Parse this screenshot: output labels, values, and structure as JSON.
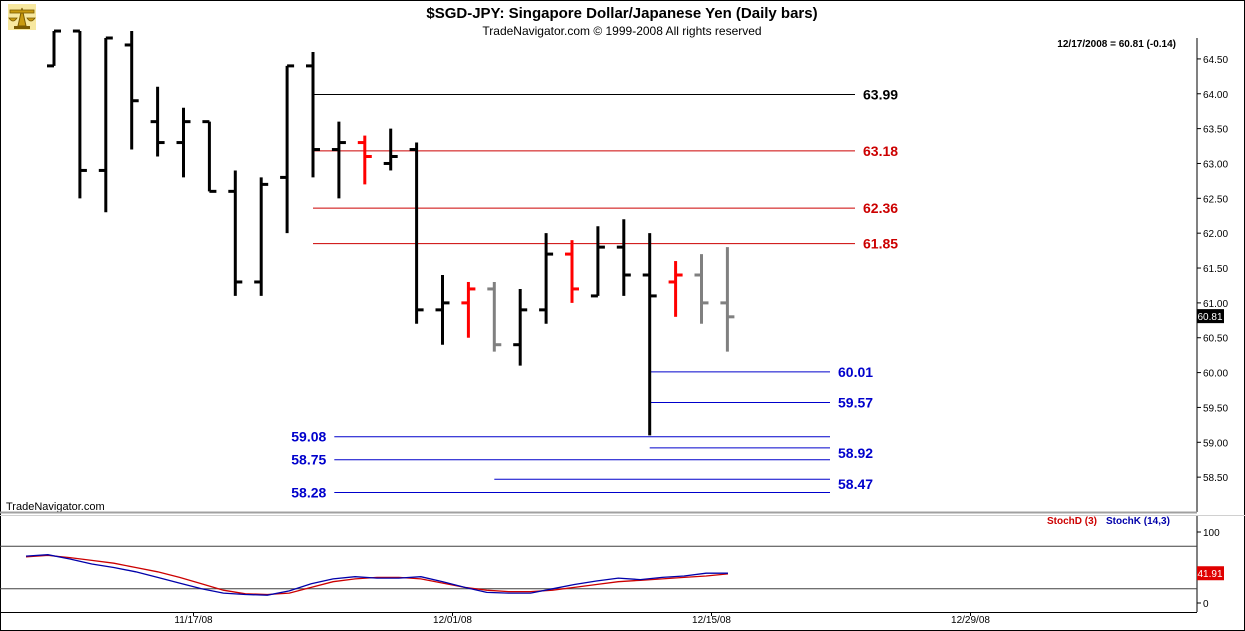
{
  "header": {
    "title": "$SGD-JPY:  Singapore Dollar/Japanese Yen  (Daily bars)",
    "copyright": "TradeNavigator.com © 1999-2008 All rights reserved",
    "quote": "12/17/2008 = 60.81 (-0.14)",
    "logo_icon": "trading-scale-icon"
  },
  "watermark": "TradeNavigator.com",
  "colors": {
    "up": "#000000",
    "down": "#ff0000",
    "pending": "#808080",
    "resistance": "#000000",
    "fib": "#cc0000",
    "support": "#0000cc",
    "stochD": "#cc0000",
    "stochK": "#0000aa"
  },
  "chart_data": [
    {
      "type": "bar",
      "subtype": "ohlc",
      "title": "$SGD-JPY:  Singapore Dollar/Japanese Yen  (Daily bars)",
      "ylim": [
        58.0,
        64.8
      ],
      "y_ticks": [
        "64.50",
        "64.00",
        "63.50",
        "63.00",
        "62.50",
        "62.00",
        "61.50",
        "61.00",
        "60.50",
        "60.00",
        "59.50",
        "59.00",
        "58.50"
      ],
      "x_ticks": [
        {
          "label": "11/17/08",
          "bar": 5
        },
        {
          "label": "12/01/08",
          "bar": 15
        },
        {
          "label": "12/15/08",
          "bar": 25
        },
        {
          "label": "12/29/08",
          "bar": 35
        }
      ],
      "bars": [
        {
          "o": 64.4,
          "h": 64.9,
          "l": 64.4,
          "c": 64.9,
          "color": "up"
        },
        {
          "o": 64.9,
          "h": 64.9,
          "l": 62.5,
          "c": 62.9,
          "color": "up"
        },
        {
          "o": 62.9,
          "h": 64.8,
          "l": 62.3,
          "c": 64.8,
          "color": "up"
        },
        {
          "o": 64.7,
          "h": 64.9,
          "l": 63.2,
          "c": 63.9,
          "color": "up"
        },
        {
          "o": 63.6,
          "h": 64.1,
          "l": 63.1,
          "c": 63.3,
          "color": "up"
        },
        {
          "o": 63.3,
          "h": 63.8,
          "l": 62.8,
          "c": 63.6,
          "color": "up"
        },
        {
          "o": 63.6,
          "h": 63.6,
          "l": 62.6,
          "c": 62.6,
          "color": "up"
        },
        {
          "o": 62.6,
          "h": 62.9,
          "l": 61.1,
          "c": 61.3,
          "color": "up"
        },
        {
          "o": 61.3,
          "h": 62.8,
          "l": 61.1,
          "c": 62.7,
          "color": "up"
        },
        {
          "o": 62.8,
          "h": 64.4,
          "l": 62.0,
          "c": 64.4,
          "color": "up"
        },
        {
          "o": 64.4,
          "h": 64.6,
          "l": 62.8,
          "c": 63.2,
          "color": "up"
        },
        {
          "o": 63.2,
          "h": 63.6,
          "l": 62.5,
          "c": 63.3,
          "color": "up"
        },
        {
          "o": 63.3,
          "h": 63.4,
          "l": 62.7,
          "c": 63.1,
          "color": "down"
        },
        {
          "o": 63.0,
          "h": 63.5,
          "l": 62.9,
          "c": 63.1,
          "color": "up"
        },
        {
          "o": 63.2,
          "h": 63.3,
          "l": 60.7,
          "c": 60.9,
          "color": "up"
        },
        {
          "o": 60.9,
          "h": 61.4,
          "l": 60.4,
          "c": 61.0,
          "color": "up"
        },
        {
          "o": 61.0,
          "h": 61.3,
          "l": 60.5,
          "c": 61.2,
          "color": "down"
        },
        {
          "o": 61.2,
          "h": 61.3,
          "l": 60.3,
          "c": 60.4,
          "color": "pending"
        },
        {
          "o": 60.4,
          "h": 61.2,
          "l": 60.1,
          "c": 60.9,
          "color": "up"
        },
        {
          "o": 60.9,
          "h": 62.0,
          "l": 60.7,
          "c": 61.7,
          "color": "up"
        },
        {
          "o": 61.7,
          "h": 61.9,
          "l": 61.0,
          "c": 61.2,
          "color": "down"
        },
        {
          "o": 61.1,
          "h": 62.1,
          "l": 61.1,
          "c": 61.8,
          "color": "up"
        },
        {
          "o": 61.8,
          "h": 62.2,
          "l": 61.1,
          "c": 61.4,
          "color": "up"
        },
        {
          "o": 61.4,
          "h": 62.0,
          "l": 59.1,
          "c": 61.1,
          "color": "up"
        },
        {
          "o": 61.3,
          "h": 61.6,
          "l": 60.8,
          "c": 61.4,
          "color": "down"
        },
        {
          "o": 61.4,
          "h": 61.7,
          "l": 60.7,
          "c": 61.0,
          "color": "pending"
        },
        {
          "o": 61.0,
          "h": 61.8,
          "l": 60.3,
          "c": 60.8,
          "color": "pending"
        }
      ],
      "levels": [
        {
          "value": 63.99,
          "label": "63.99",
          "kind": "resistance",
          "from_bar": 10,
          "label_side": "right"
        },
        {
          "value": 63.18,
          "label": "63.18",
          "kind": "fib",
          "from_bar": 10,
          "label_side": "right"
        },
        {
          "value": 62.36,
          "label": "62.36",
          "kind": "fib",
          "from_bar": 10,
          "label_side": "right"
        },
        {
          "value": 61.85,
          "label": "61.85",
          "kind": "fib",
          "from_bar": 10,
          "label_side": "right"
        },
        {
          "value": 60.01,
          "label": "60.01",
          "kind": "support",
          "from_bar": 23,
          "label_side": "right"
        },
        {
          "value": 59.57,
          "label": "59.57",
          "kind": "support",
          "from_bar": 23,
          "label_side": "right"
        },
        {
          "value": 59.08,
          "label": "59.08",
          "kind": "support",
          "from_bar": 17,
          "label_side": "left"
        },
        {
          "value": 58.92,
          "label": "58.92",
          "kind": "support",
          "from_bar": 23,
          "label_side": "right"
        },
        {
          "value": 58.75,
          "label": "58.75",
          "kind": "support",
          "from_bar": 17,
          "label_side": "left"
        },
        {
          "value": 58.47,
          "label": "58.47",
          "kind": "support",
          "from_bar": 17,
          "label_side": "right"
        },
        {
          "value": 58.28,
          "label": "58.28",
          "kind": "support",
          "from_bar": 17,
          "label_side": "left"
        }
      ],
      "last_price": "60.81",
      "last_price_value": 60.81
    },
    {
      "type": "line",
      "subtype": "stochastic",
      "ylim": [
        0,
        100
      ],
      "y_ticks": [
        "100",
        "0"
      ],
      "reference_lines": [
        80,
        20
      ],
      "series": [
        {
          "name": "StochD (3)",
          "color": "stochD",
          "values": [
            65,
            67,
            64,
            60,
            56,
            50,
            44,
            36,
            27,
            18,
            13,
            12,
            14,
            22,
            30,
            34,
            36,
            36,
            34,
            28,
            22,
            18,
            16,
            16,
            18,
            22,
            26,
            30,
            32,
            34,
            36,
            38,
            41
          ]
        },
        {
          "name": "StochK (14,3)",
          "color": "stochK",
          "values": [
            66,
            68,
            62,
            55,
            50,
            44,
            36,
            28,
            20,
            14,
            12,
            11,
            17,
            27,
            34,
            37,
            35,
            35,
            37,
            30,
            22,
            15,
            14,
            14,
            20,
            26,
            31,
            35,
            33,
            36,
            38,
            42,
            42
          ]
        }
      ],
      "last_value": "41.91"
    }
  ]
}
